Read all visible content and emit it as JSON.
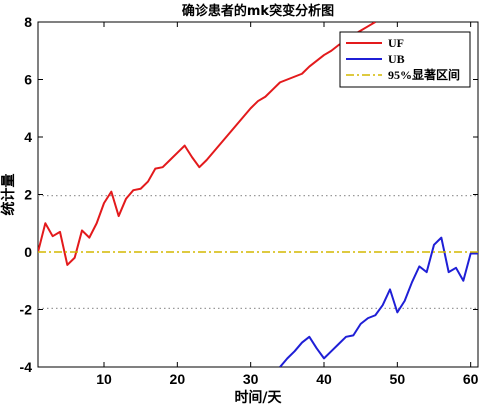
{
  "chart_data": {
    "type": "line",
    "title": "确诊患者的mk突变分析图",
    "xlabel": "时间/天",
    "ylabel": "统计量",
    "xlim": [
      1,
      61
    ],
    "ylim": [
      -4,
      8
    ],
    "xticks": [
      10,
      20,
      30,
      40,
      50,
      60
    ],
    "yticks": [
      -4,
      -2,
      0,
      2,
      4,
      6,
      8
    ],
    "grid": false,
    "legend_position": "top-right",
    "series": [
      {
        "name": "UF",
        "color": "#e31a1c",
        "x": [
          1,
          2,
          3,
          4,
          5,
          6,
          7,
          8,
          9,
          10,
          11,
          12,
          13,
          14,
          15,
          16,
          17,
          18,
          19,
          20,
          21,
          22,
          23,
          24,
          25,
          26,
          27,
          28,
          29,
          30,
          31,
          32,
          33,
          34,
          35,
          36,
          37,
          38,
          39,
          40,
          41,
          42,
          43,
          44,
          45,
          46,
          47
        ],
        "values": [
          0.0,
          1.0,
          0.55,
          0.7,
          -0.45,
          -0.2,
          0.75,
          0.5,
          1.0,
          1.7,
          2.1,
          1.25,
          1.85,
          2.15,
          2.2,
          2.45,
          2.9,
          2.95,
          3.2,
          3.45,
          3.7,
          3.3,
          2.95,
          3.2,
          3.5,
          3.8,
          4.1,
          4.4,
          4.7,
          5.0,
          5.25,
          5.4,
          5.65,
          5.9,
          6.0,
          6.1,
          6.2,
          6.45,
          6.65,
          6.85,
          7.0,
          7.2,
          7.35,
          7.55,
          7.7,
          7.85,
          8.0
        ]
      },
      {
        "name": "UB",
        "color": "#1f1fd6",
        "x": [
          34,
          35,
          36,
          37,
          38,
          39,
          40,
          41,
          42,
          43,
          44,
          45,
          46,
          47,
          48,
          49,
          50,
          51,
          52,
          53,
          54,
          55,
          56,
          57,
          58,
          59,
          60,
          61
        ],
        "values": [
          -4.0,
          -3.7,
          -3.45,
          -3.15,
          -2.95,
          -3.35,
          -3.7,
          -3.45,
          -3.2,
          -2.95,
          -2.9,
          -2.5,
          -2.3,
          -2.2,
          -1.85,
          -1.3,
          -2.1,
          -1.7,
          -1.05,
          -0.5,
          -0.7,
          0.25,
          0.5,
          -0.7,
          -0.55,
          -1.0,
          -0.05,
          -0.05
        ]
      },
      {
        "name": "95%显著区间",
        "color": "#d4b800",
        "x": [
          1,
          61
        ],
        "values": [
          0,
          0
        ]
      }
    ],
    "reference_lines": [
      {
        "y": 1.96,
        "color": "#999999",
        "style": "dotted"
      },
      {
        "y": -1.96,
        "color": "#999999",
        "style": "dotted"
      }
    ]
  }
}
